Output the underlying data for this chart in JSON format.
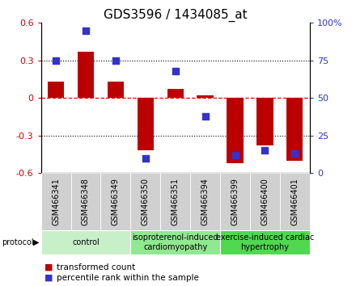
{
  "title": "GDS3596 / 1434085_at",
  "samples": [
    "GSM466341",
    "GSM466348",
    "GSM466349",
    "GSM466350",
    "GSM466351",
    "GSM466394",
    "GSM466399",
    "GSM466400",
    "GSM466401"
  ],
  "red_values": [
    0.13,
    0.37,
    0.13,
    -0.42,
    0.07,
    0.02,
    -0.52,
    -0.38,
    -0.5
  ],
  "blue_values": [
    75,
    95,
    75,
    10,
    68,
    38,
    12,
    15,
    13
  ],
  "groups": [
    {
      "label": "control",
      "start": 0,
      "end": 3,
      "color": "#c8f0c8"
    },
    {
      "label": "isoproterenol-induced\ncardiomyopathy",
      "start": 3,
      "end": 6,
      "color": "#90e890"
    },
    {
      "label": "exercise-induced cardiac\nhypertrophy",
      "start": 6,
      "end": 9,
      "color": "#50d850"
    }
  ],
  "ylim_left": [
    -0.6,
    0.6
  ],
  "ylim_right": [
    0,
    100
  ],
  "yticks_left": [
    -0.6,
    -0.3,
    0.0,
    0.3,
    0.6
  ],
  "yticks_right": [
    0,
    25,
    50,
    75,
    100
  ],
  "ytick_labels_left": [
    "-0.6",
    "-0.3",
    "0",
    "0.3",
    "0.6"
  ],
  "ytick_labels_right": [
    "0",
    "25",
    "50",
    "75",
    "100%"
  ],
  "hline_dotted": [
    -0.3,
    0.3
  ],
  "hline_red": 0,
  "bar_color": "#bb0000",
  "dot_color": "#3333cc",
  "bar_width": 0.55,
  "dot_size": 28,
  "left_tick_color": "#cc0000",
  "right_tick_color": "#3333cc",
  "bg_color": "#ffffff",
  "plot_bg_color": "#ffffff",
  "sample_cell_color": "#d0d0d0",
  "group_label_fontsize": 7,
  "sample_fontsize": 7,
  "title_fontsize": 11,
  "legend_fontsize": 7.5
}
